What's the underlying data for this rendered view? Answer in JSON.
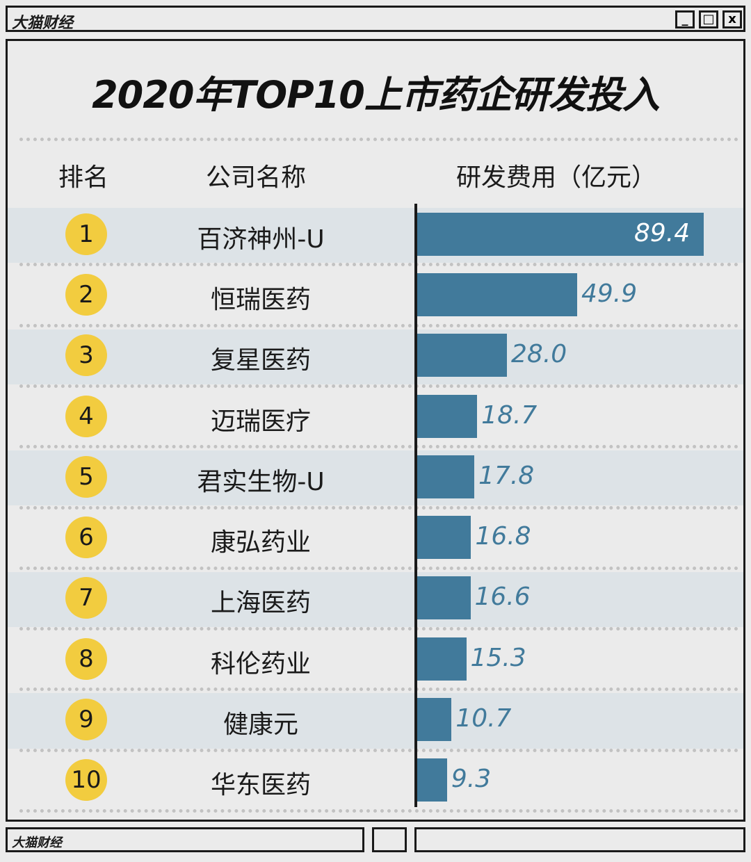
{
  "window": {
    "brand": "大猫财经",
    "min": "_",
    "max": "□",
    "close": "x"
  },
  "status_bar": {
    "brand": "大猫财经"
  },
  "chart_data": {
    "type": "bar",
    "title": "2020年TOP10上市药企研发投入",
    "headers": [
      "排名",
      "公司名称",
      "研发费用（亿元）"
    ],
    "ranks": [
      "1",
      "2",
      "3",
      "4",
      "5",
      "6",
      "7",
      "8",
      "9",
      "10"
    ],
    "categories": [
      "百济神州-U",
      "恒瑞医药",
      "复星医药",
      "迈瑞医疗",
      "君实生物-U",
      "康弘药业",
      "上海医药",
      "科伦药业",
      "健康元",
      "华东医药"
    ],
    "values": [
      89.4,
      49.9,
      28.0,
      18.7,
      17.8,
      16.8,
      16.6,
      15.3,
      10.7,
      9.3
    ],
    "value_labels": [
      "89.4",
      "49.9",
      "28.0",
      "18.7",
      "17.8",
      "16.8",
      "16.6",
      "15.3",
      "10.7",
      "9.3"
    ],
    "bar_color": "#417a9b",
    "badge_color": "#f2cc3f",
    "orientation": "horizontal"
  }
}
